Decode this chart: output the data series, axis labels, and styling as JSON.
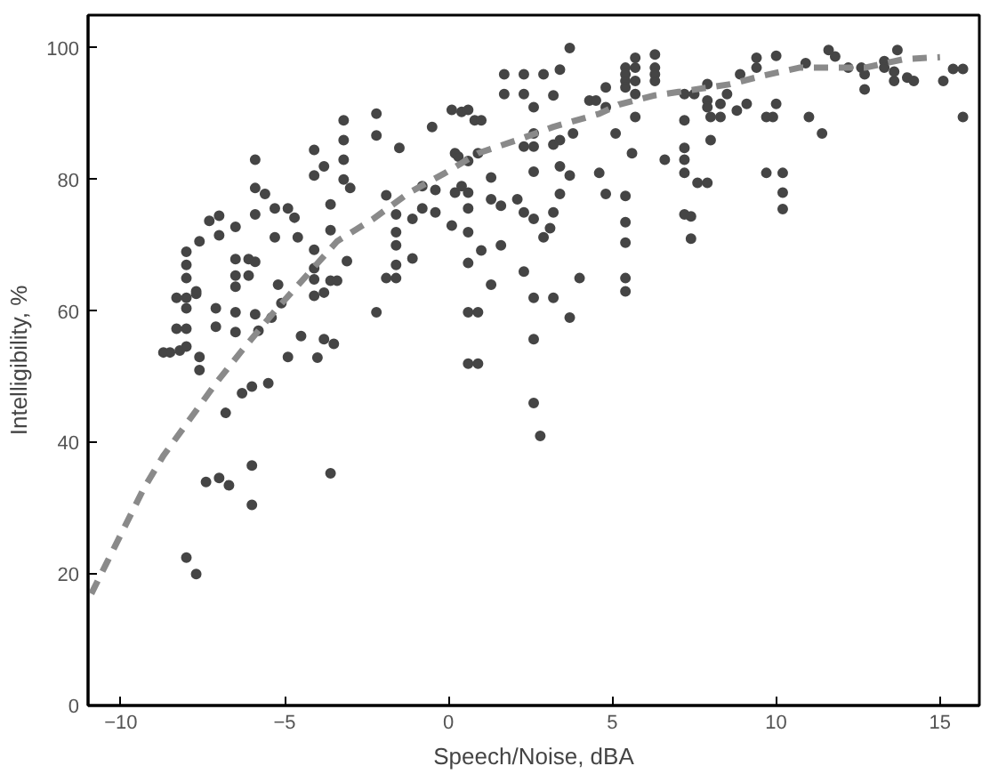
{
  "chart_data": {
    "type": "scatter",
    "xlabel": "Speech/Noise, dBA",
    "ylabel": "Intelligibility, %",
    "xlim": [
      -11,
      16.2
    ],
    "ylim": [
      0,
      105
    ],
    "xticks": [
      -10,
      -5,
      0,
      5,
      10,
      15
    ],
    "yticks": [
      0,
      20,
      40,
      60,
      80,
      100
    ],
    "grid": false,
    "series": [
      {
        "marker": "circle",
        "color": "#454545",
        "x": [
          -8.7,
          -8.5,
          -8.2,
          -8.0,
          -8.3,
          -8.0,
          -8.3,
          -8.0,
          -7.7,
          -8.0,
          -8.0,
          -8.0,
          -8.0,
          -7.7,
          -7.1,
          -7.1,
          -7.6,
          -7.6,
          -7.3,
          -7.0,
          -7.6,
          -7.0,
          -5.9,
          -5.9,
          -5.6,
          -6.5,
          -5.9,
          -6.5,
          -6.1,
          -5.9,
          -6.5,
          -6.1,
          -6.5,
          -6.5,
          -6.5,
          -5.9,
          -5.8,
          -5.4,
          -5.1,
          -5.2,
          -5.3,
          -5.3,
          -4.9,
          -4.7,
          -4.6,
          -4.1,
          -4.1,
          -4.1,
          -4.1,
          -4.5,
          -4.0,
          -3.8,
          -3.6,
          -3.4,
          -3.8,
          -3.5,
          -4.9,
          -4.1,
          -4.1,
          -3.8,
          -3.2,
          -3.2,
          -3.2,
          -3.2,
          -3.0,
          -3.6,
          -3.6,
          -3.1,
          -2.2,
          -2.2,
          -2.2,
          -1.5,
          -1.9,
          -1.6,
          -1.6,
          -1.6,
          -1.6,
          -1.1,
          -1.1,
          -1.9,
          -1.6,
          -0.8,
          -0.8,
          -0.4,
          -0.5,
          -0.4,
          0.1,
          0.4,
          0.2,
          0.2,
          0.1,
          0.3,
          0.6,
          0.8,
          0.6,
          0.6,
          0.4,
          0.6,
          3.7,
          1.7,
          2.3,
          2.9,
          3.4,
          1.7,
          2.3,
          3.2,
          2.6,
          0.6,
          1.0,
          4.3,
          4.5,
          4.8,
          4.8,
          5.4,
          5.4,
          5.4,
          5.4,
          5.7,
          5.7,
          5.7,
          6.3,
          6.3,
          6.3,
          6.3,
          5.7,
          5.7,
          5.1,
          3.8,
          2.6,
          2.6,
          3.2,
          3.4,
          0.9,
          2.3,
          2.6,
          3.4,
          3.7,
          4.6,
          1.3,
          0.6,
          0.6,
          0.6,
          1.0,
          1.6,
          1.3,
          1.6,
          2.1,
          2.3,
          2.6,
          3.2,
          3.4,
          4.8,
          5.4,
          5.4,
          5.4,
          3.1,
          2.9,
          2.3,
          1.3,
          0.9,
          2.6,
          3.2,
          4.0,
          3.7,
          5.4,
          5.4,
          2.6,
          0.9,
          2.6,
          2.8,
          5.6,
          6.6,
          7.2,
          7.2,
          7.2,
          7.6,
          7.9,
          7.2,
          7.4,
          7.4,
          7.2,
          7.9,
          7.9,
          7.9,
          7.2,
          7.5,
          8.0,
          8.3,
          8.0,
          8.3,
          8.5,
          8.9,
          8.8,
          9.1,
          9.4,
          9.4,
          10.0,
          9.7,
          9.9,
          10.0,
          9.7,
          10.2,
          10.2,
          10.2,
          10.9,
          11.0,
          11.4,
          11.6,
          11.8,
          12.2,
          12.6,
          12.7,
          12.7,
          13.3,
          13.3,
          13.7,
          13.6,
          13.6,
          14.0,
          14.2,
          15.1,
          15.4,
          15.7,
          15.7,
          -8.0,
          -7.7,
          -7.4,
          -7.0,
          -6.7,
          -6.0,
          -6.0,
          -3.6,
          -6.8,
          -6.3,
          -6.0,
          -5.5
        ],
        "values": [
          53.7,
          53.7,
          54,
          54.6,
          57.3,
          57.3,
          62,
          62,
          62.6,
          69,
          67,
          65,
          60.4,
          63,
          60.4,
          57.6,
          53,
          51,
          73.7,
          74.5,
          70.6,
          71.5,
          83,
          78.7,
          77.8,
          72.8,
          74.7,
          67.9,
          67.9,
          67.5,
          65.4,
          65.4,
          63.7,
          59.8,
          56.8,
          59.5,
          57,
          59,
          61.2,
          64,
          71.2,
          75.6,
          75.6,
          74.2,
          71.2,
          69.3,
          66.5,
          64.8,
          62.3,
          56.2,
          52.9,
          55.7,
          64.6,
          64.6,
          62.8,
          55,
          53,
          84.5,
          80.6,
          82,
          89,
          86,
          83,
          80,
          78.7,
          76.2,
          72.3,
          67.6,
          90,
          86.7,
          59.8,
          84.8,
          77.6,
          74.7,
          72,
          70,
          67,
          74,
          68,
          65,
          65,
          75.6,
          79,
          75,
          88,
          78.4,
          90.6,
          90.3,
          84,
          78,
          73,
          83.5,
          82.8,
          89,
          67.3,
          59.8,
          79,
          52,
          100,
          96,
          96,
          96,
          96.7,
          93,
          93,
          92.8,
          91,
          90.6,
          89,
          92,
          92,
          94,
          91,
          97,
          96,
          95,
          94,
          98.5,
          97,
          95,
          99,
          97,
          96,
          95,
          93,
          89.5,
          87,
          87,
          87,
          85,
          85.3,
          86,
          84,
          85,
          81.2,
          82,
          80.6,
          81,
          80.3,
          78,
          75.6,
          72,
          69.2,
          70,
          77,
          76,
          77,
          75,
          74,
          75,
          77.8,
          77.8,
          77.5,
          73.5,
          70.4,
          72.6,
          71.2,
          66,
          64,
          59.8,
          62,
          62,
          65,
          59,
          65,
          63,
          55.7,
          52,
          46,
          41,
          84,
          83,
          84.8,
          83,
          81,
          79.5,
          79.5,
          74.7,
          74.4,
          71,
          89,
          94.5,
          92,
          91,
          93,
          93,
          89.5,
          89.5,
          86,
          91.5,
          93,
          96,
          90.5,
          91.5,
          98.5,
          97,
          98.8,
          89.5,
          89.5,
          91.5,
          81,
          81,
          78,
          75.5,
          97.7,
          89.5,
          87,
          99.7,
          98.7,
          97,
          97,
          96,
          93.7,
          98,
          97,
          99.7,
          96.4,
          95,
          95.5,
          95,
          95,
          96.8,
          96.8,
          89.5,
          22.5,
          20,
          34,
          34.6,
          33.5,
          36.5,
          30.5,
          35.3,
          44.5,
          47.5,
          48.5,
          49
        ]
      },
      {
        "type": "line",
        "line_style": "dashed",
        "marker": "none",
        "color": "#8a8a8a",
        "x": [
          -10.9,
          -10.4,
          -9.9,
          -9.3,
          -8.7,
          -7.9,
          -7.1,
          -6.3,
          -5.3,
          -4.4,
          -3.4,
          -2.3,
          -1.2,
          -0.1,
          0.9,
          2.1,
          3.2,
          4.6,
          5.2,
          6.3,
          7.4,
          8.6,
          9.6,
          10.7,
          11.8,
          12.7,
          13.9,
          15.0
        ],
        "values": [
          17,
          22,
          27,
          33,
          38,
          43.5,
          49,
          54,
          60,
          65,
          70.6,
          74,
          78,
          81,
          84,
          86,
          88,
          90,
          91.4,
          92.8,
          93.6,
          94.5,
          95.8,
          97,
          97,
          97,
          98.3,
          98.6
        ]
      }
    ]
  }
}
